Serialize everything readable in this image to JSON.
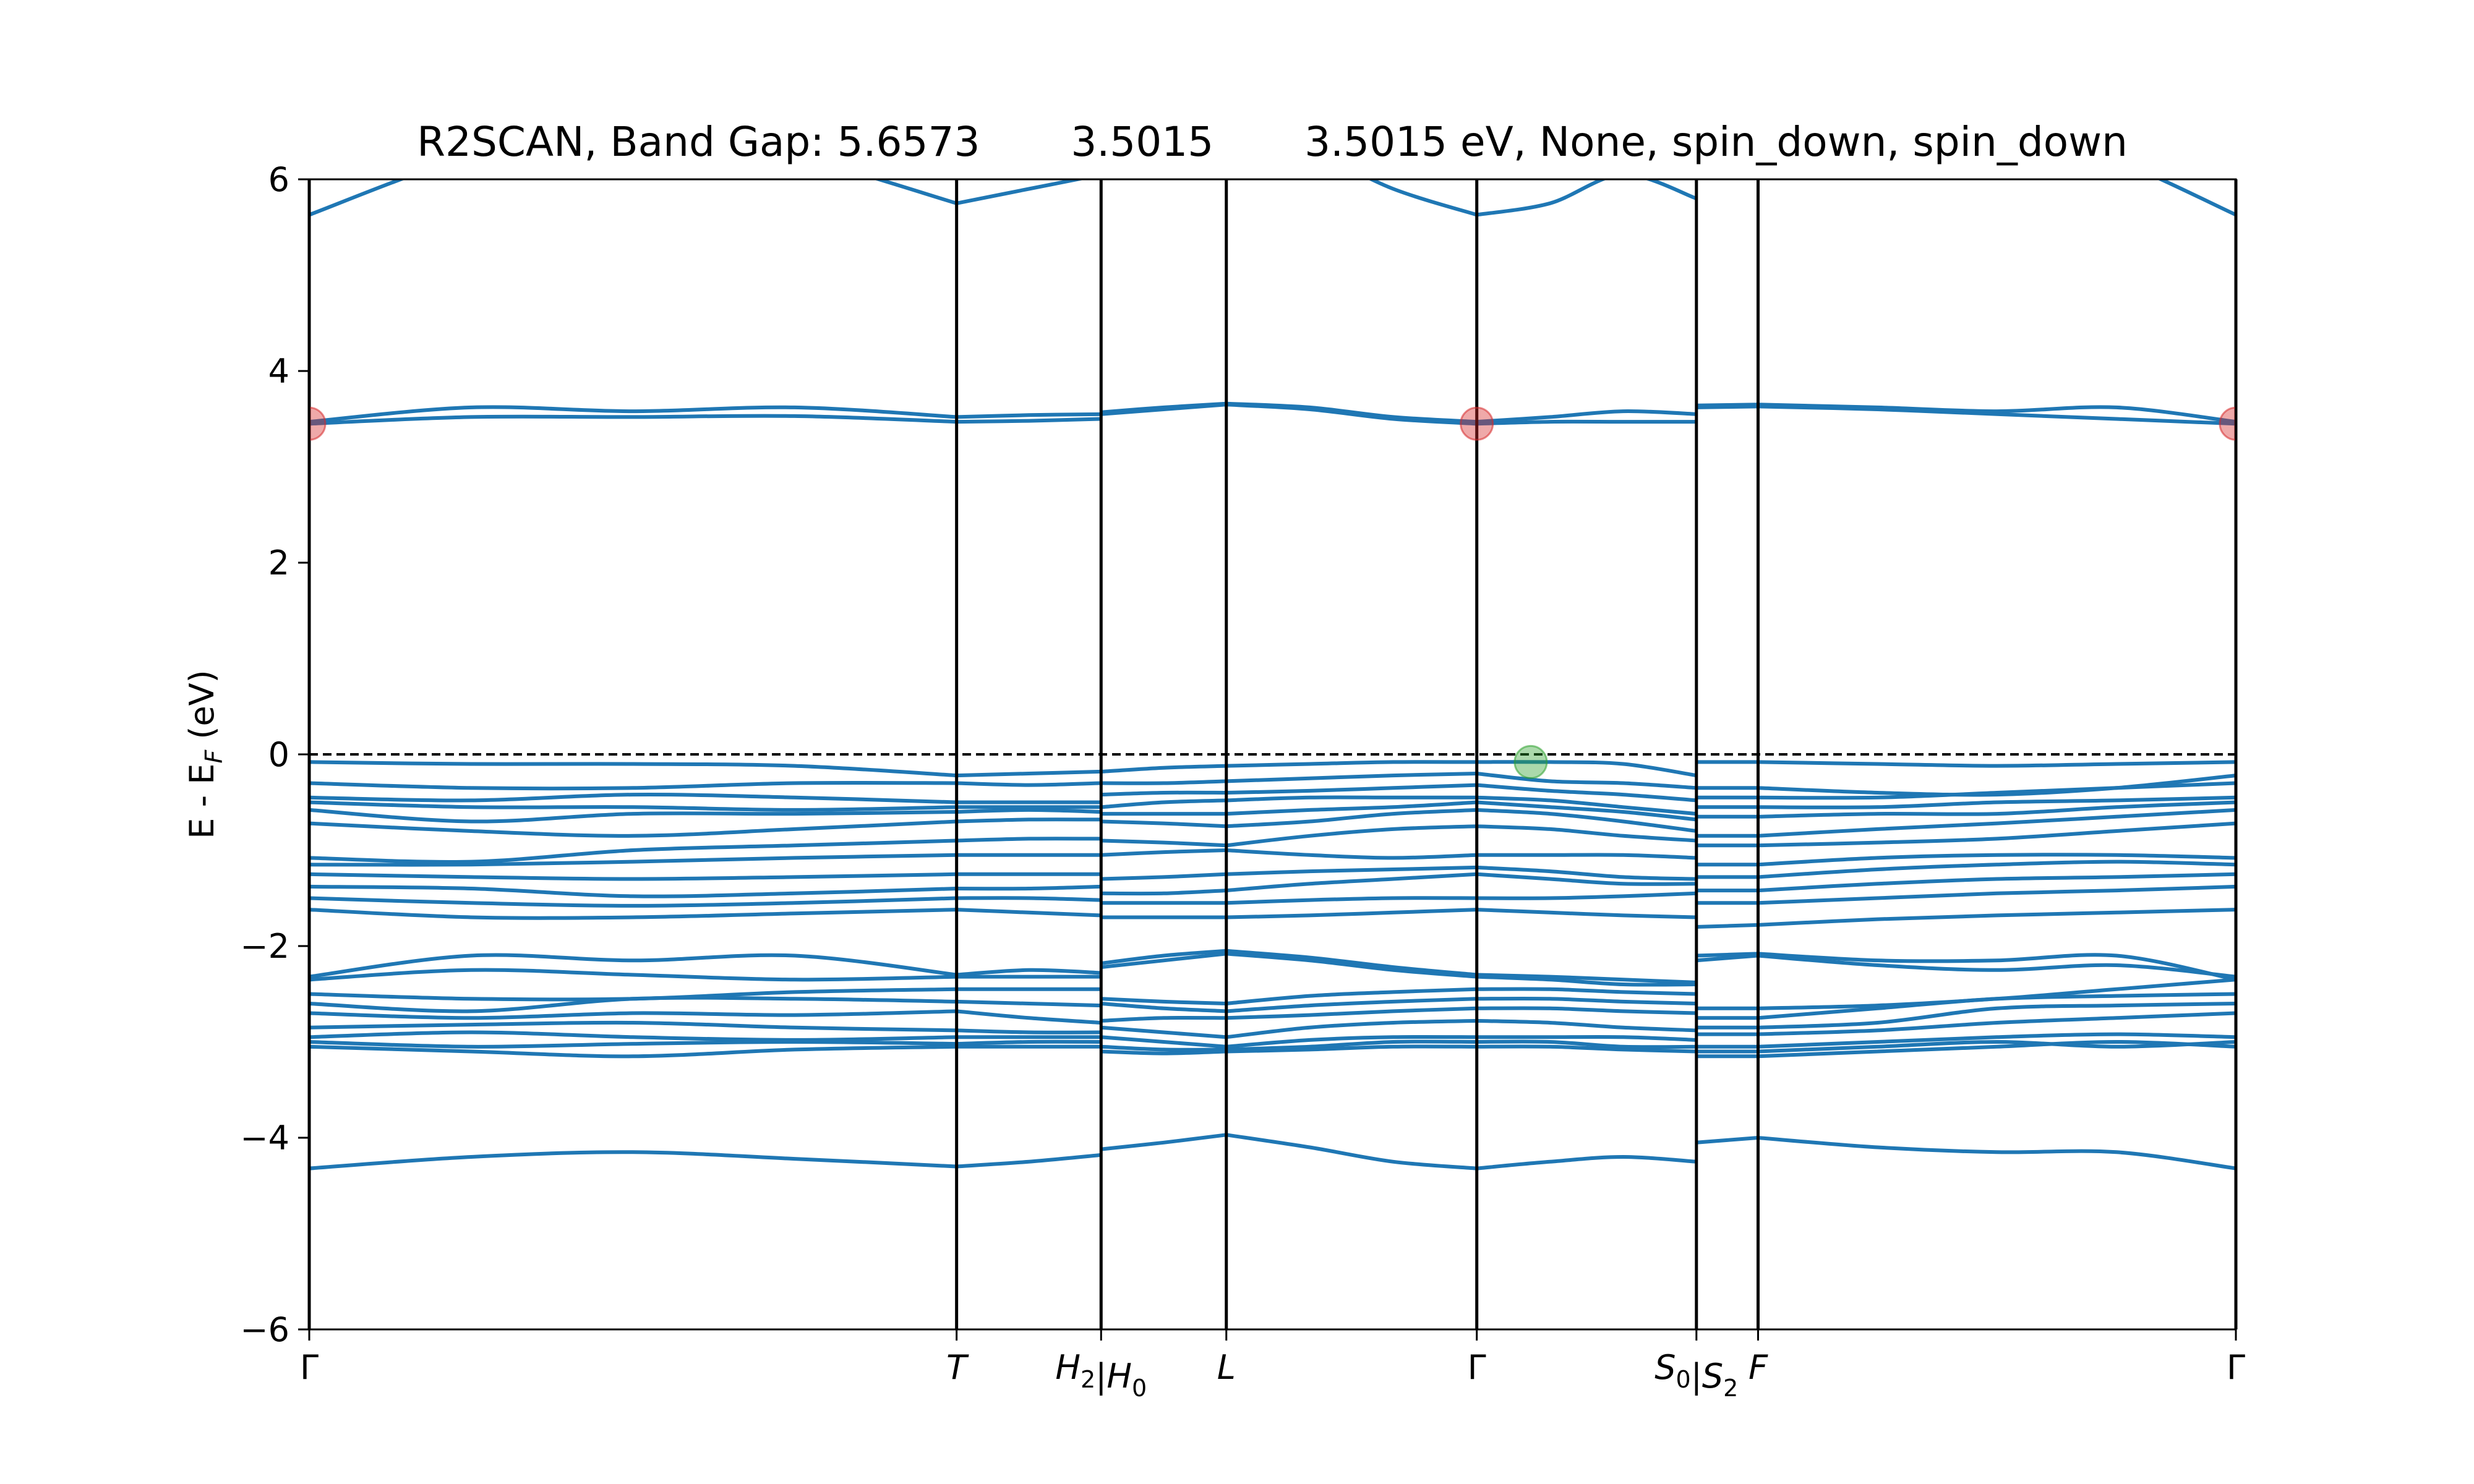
{
  "chart_data": {
    "type": "line",
    "title": "R2SCAN, Band Gap: 5.6573       3.5015       3.5015 eV, None, spin_down, spin_down",
    "ylabel": {
      "prefix": "E - E",
      "sub": "F",
      "suffix": " (eV)"
    },
    "ylim": [
      -6,
      6
    ],
    "yticks": [
      6,
      4,
      2,
      0,
      -2,
      -4,
      -6
    ],
    "ytick_labels": [
      "6",
      "4",
      "2",
      "0",
      "−2",
      "−4",
      "−6"
    ],
    "fermi_level": 0,
    "colors": {
      "band": "#1f77b4",
      "cbm_marker": "#d62728",
      "vbm_marker": "#2ca02c",
      "axis": "#000000"
    },
    "kpath": [
      {
        "pos": 0.0,
        "label": "Γ",
        "sub": ""
      },
      {
        "pos": 0.336,
        "label": "T",
        "sub": ""
      },
      {
        "pos": 0.411,
        "label": "H",
        "sub": "2",
        "label2": "H",
        "sub2": "0"
      },
      {
        "pos": 0.476,
        "label": "L",
        "sub": ""
      },
      {
        "pos": 0.606,
        "label": "Γ",
        "sub": ""
      },
      {
        "pos": 0.72,
        "label": "S",
        "sub": "0",
        "label2": "S",
        "sub2": "2"
      },
      {
        "pos": 0.752,
        "label": "F",
        "sub": ""
      },
      {
        "pos": 1.0,
        "label": "Γ",
        "sub": ""
      }
    ],
    "segments": [
      {
        "from": 0.0,
        "to": 0.336,
        "bands": [
          [
            -4.32,
            -4.2,
            -4.15,
            -4.22,
            -4.3
          ],
          [
            -3.05,
            -3.1,
            -3.15,
            -3.08,
            -3.05
          ],
          [
            -3.0,
            -3.05,
            -3.02,
            -3.0,
            -3.02
          ],
          [
            -2.95,
            -2.9,
            -2.95,
            -2.98,
            -2.95
          ],
          [
            -2.85,
            -2.82,
            -2.8,
            -2.85,
            -2.88
          ],
          [
            -2.7,
            -2.75,
            -2.7,
            -2.72,
            -2.68
          ],
          [
            -2.6,
            -2.68,
            -2.55,
            -2.55,
            -2.58
          ],
          [
            -2.5,
            -2.55,
            -2.55,
            -2.48,
            -2.45
          ],
          [
            -2.35,
            -2.25,
            -2.3,
            -2.35,
            -2.32
          ],
          [
            -2.32,
            -2.1,
            -2.15,
            -2.1,
            -2.3
          ],
          [
            -1.62,
            -1.7,
            -1.7,
            -1.66,
            -1.62
          ],
          [
            -1.5,
            -1.55,
            -1.58,
            -1.55,
            -1.5
          ],
          [
            -1.38,
            -1.4,
            -1.48,
            -1.45,
            -1.4
          ],
          [
            -1.25,
            -1.28,
            -1.3,
            -1.28,
            -1.25
          ],
          [
            -1.15,
            -1.15,
            -1.12,
            -1.08,
            -1.05
          ],
          [
            -1.08,
            -1.12,
            -1.0,
            -0.95,
            -0.9
          ],
          [
            -0.72,
            -0.8,
            -0.85,
            -0.78,
            -0.7
          ],
          [
            -0.58,
            -0.7,
            -0.62,
            -0.62,
            -0.6
          ],
          [
            -0.5,
            -0.55,
            -0.55,
            -0.58,
            -0.55
          ],
          [
            -0.45,
            -0.48,
            -0.42,
            -0.45,
            -0.5
          ],
          [
            -0.3,
            -0.35,
            -0.35,
            -0.3,
            -0.3
          ],
          [
            -0.08,
            -0.1,
            -0.1,
            -0.12,
            -0.22
          ],
          [
            3.45,
            3.52,
            3.52,
            3.53,
            3.47
          ],
          [
            3.47,
            3.62,
            3.58,
            3.62,
            3.52
          ],
          [
            5.63,
            6.25,
            6.6,
            6.25,
            5.75
          ]
        ]
      },
      {
        "from": 0.336,
        "to": 0.411,
        "bands": [
          [
            -4.3,
            -4.25,
            -4.18
          ],
          [
            -3.05,
            -3.05,
            -3.05
          ],
          [
            -3.02,
            -3.0,
            -3.0
          ],
          [
            -2.95,
            -2.95,
            -2.95
          ],
          [
            -2.88,
            -2.9,
            -2.9
          ],
          [
            -2.68,
            -2.75,
            -2.8
          ],
          [
            -2.58,
            -2.6,
            -2.62
          ],
          [
            -2.45,
            -2.45,
            -2.45
          ],
          [
            -2.32,
            -2.32,
            -2.32
          ],
          [
            -2.3,
            -2.25,
            -2.28
          ],
          [
            -1.62,
            -1.65,
            -1.68
          ],
          [
            -1.5,
            -1.5,
            -1.52
          ],
          [
            -1.4,
            -1.4,
            -1.38
          ],
          [
            -1.25,
            -1.25,
            -1.25
          ],
          [
            -1.05,
            -1.05,
            -1.05
          ],
          [
            -0.9,
            -0.88,
            -0.88
          ],
          [
            -0.7,
            -0.68,
            -0.68
          ],
          [
            -0.6,
            -0.58,
            -0.6
          ],
          [
            -0.55,
            -0.55,
            -0.55
          ],
          [
            -0.5,
            -0.5,
            -0.5
          ],
          [
            -0.3,
            -0.32,
            -0.3
          ],
          [
            -0.22,
            -0.2,
            -0.18
          ],
          [
            3.47,
            3.48,
            3.5
          ],
          [
            3.52,
            3.54,
            3.55
          ],
          [
            5.75,
            5.9,
            6.05
          ]
        ]
      },
      {
        "from": 0.411,
        "to": 0.476,
        "bands": [
          [
            -4.12,
            -4.05,
            -3.97
          ],
          [
            -3.1,
            -3.12,
            -3.1
          ],
          [
            -3.05,
            -3.08,
            -3.08
          ],
          [
            -2.95,
            -3.0,
            -3.05
          ],
          [
            -2.85,
            -2.9,
            -2.95
          ],
          [
            -2.78,
            -2.75,
            -2.75
          ],
          [
            -2.6,
            -2.65,
            -2.68
          ],
          [
            -2.55,
            -2.58,
            -2.6
          ],
          [
            -2.22,
            -2.15,
            -2.08
          ],
          [
            -2.18,
            -2.1,
            -2.05
          ],
          [
            -1.7,
            -1.7,
            -1.7
          ],
          [
            -1.55,
            -1.55,
            -1.55
          ],
          [
            -1.45,
            -1.45,
            -1.42
          ],
          [
            -1.3,
            -1.28,
            -1.25
          ],
          [
            -1.05,
            -1.02,
            -1.0
          ],
          [
            -0.9,
            -0.92,
            -0.95
          ],
          [
            -0.7,
            -0.72,
            -0.75
          ],
          [
            -0.62,
            -0.62,
            -0.62
          ],
          [
            -0.55,
            -0.5,
            -0.48
          ],
          [
            -0.42,
            -0.4,
            -0.4
          ],
          [
            -0.3,
            -0.3,
            -0.28
          ],
          [
            -0.18,
            -0.14,
            -0.12
          ],
          [
            3.55,
            3.6,
            3.65
          ],
          [
            3.57,
            3.62,
            3.66
          ],
          [
            6.1,
            6.3,
            6.5
          ]
        ]
      },
      {
        "from": 0.476,
        "to": 0.606,
        "bands": [
          [
            -3.97,
            -4.1,
            -4.25,
            -4.32
          ],
          [
            -3.1,
            -3.08,
            -3.05,
            -3.05
          ],
          [
            -3.08,
            -3.05,
            -3.0,
            -3.0
          ],
          [
            -3.05,
            -2.98,
            -2.95,
            -2.95
          ],
          [
            -2.95,
            -2.85,
            -2.8,
            -2.78
          ],
          [
            -2.75,
            -2.72,
            -2.68,
            -2.65
          ],
          [
            -2.68,
            -2.62,
            -2.58,
            -2.55
          ],
          [
            -2.6,
            -2.52,
            -2.48,
            -2.45
          ],
          [
            -2.08,
            -2.15,
            -2.25,
            -2.32
          ],
          [
            -2.05,
            -2.12,
            -2.22,
            -2.3
          ],
          [
            -1.7,
            -1.68,
            -1.65,
            -1.62
          ],
          [
            -1.55,
            -1.52,
            -1.5,
            -1.5
          ],
          [
            -1.42,
            -1.35,
            -1.3,
            -1.25
          ],
          [
            -1.25,
            -1.22,
            -1.2,
            -1.18
          ],
          [
            -1.0,
            -1.05,
            -1.08,
            -1.05
          ],
          [
            -0.95,
            -0.85,
            -0.78,
            -0.75
          ],
          [
            -0.75,
            -0.7,
            -0.62,
            -0.58
          ],
          [
            -0.62,
            -0.58,
            -0.55,
            -0.5
          ],
          [
            -0.48,
            -0.45,
            -0.45,
            -0.45
          ],
          [
            -0.4,
            -0.38,
            -0.35,
            -0.32
          ],
          [
            -0.28,
            -0.25,
            -0.22,
            -0.2
          ],
          [
            -0.12,
            -0.1,
            -0.08,
            -0.08
          ],
          [
            3.65,
            3.6,
            3.5,
            3.45
          ],
          [
            3.66,
            3.62,
            3.52,
            3.47
          ],
          [
            6.5,
            6.3,
            5.9,
            5.63
          ]
        ]
      },
      {
        "from": 0.606,
        "to": 0.72,
        "bands": [
          [
            -4.32,
            -4.25,
            -4.2,
            -4.25
          ],
          [
            -3.05,
            -3.05,
            -3.08,
            -3.1
          ],
          [
            -3.0,
            -3.0,
            -3.05,
            -3.05
          ],
          [
            -2.95,
            -2.95,
            -2.95,
            -2.98
          ],
          [
            -2.78,
            -2.8,
            -2.85,
            -2.88
          ],
          [
            -2.65,
            -2.65,
            -2.68,
            -2.7
          ],
          [
            -2.55,
            -2.55,
            -2.58,
            -2.6
          ],
          [
            -2.45,
            -2.45,
            -2.48,
            -2.5
          ],
          [
            -2.32,
            -2.35,
            -2.4,
            -2.4
          ],
          [
            -2.3,
            -2.32,
            -2.35,
            -2.38
          ],
          [
            -1.62,
            -1.65,
            -1.68,
            -1.7
          ],
          [
            -1.5,
            -1.5,
            -1.48,
            -1.45
          ],
          [
            -1.25,
            -1.3,
            -1.35,
            -1.35
          ],
          [
            -1.18,
            -1.22,
            -1.28,
            -1.3
          ],
          [
            -1.05,
            -1.05,
            -1.05,
            -1.08
          ],
          [
            -0.75,
            -0.78,
            -0.85,
            -0.9
          ],
          [
            -0.58,
            -0.62,
            -0.7,
            -0.8
          ],
          [
            -0.5,
            -0.55,
            -0.6,
            -0.68
          ],
          [
            -0.45,
            -0.48,
            -0.55,
            -0.62
          ],
          [
            -0.32,
            -0.38,
            -0.42,
            -0.48
          ],
          [
            -0.2,
            -0.28,
            -0.3,
            -0.35
          ],
          [
            -0.08,
            -0.08,
            -0.1,
            -0.22
          ],
          [
            3.45,
            3.47,
            3.47,
            3.47
          ],
          [
            3.47,
            3.52,
            3.58,
            3.55
          ],
          [
            5.63,
            5.75,
            6.05,
            5.8
          ]
        ]
      },
      {
        "from": 0.72,
        "to": 0.752,
        "bands": [
          [
            -4.05,
            -4.0
          ],
          [
            -3.15,
            -3.15
          ],
          [
            -3.1,
            -3.1
          ],
          [
            -3.05,
            -3.05
          ],
          [
            -2.92,
            -2.92
          ],
          [
            -2.85,
            -2.85
          ],
          [
            -2.75,
            -2.75
          ],
          [
            -2.65,
            -2.65
          ],
          [
            -2.15,
            -2.1
          ],
          [
            -2.1,
            -2.08
          ],
          [
            -1.8,
            -1.78
          ],
          [
            -1.55,
            -1.55
          ],
          [
            -1.42,
            -1.42
          ],
          [
            -1.28,
            -1.28
          ],
          [
            -1.15,
            -1.15
          ],
          [
            -0.95,
            -0.95
          ],
          [
            -0.85,
            -0.85
          ],
          [
            -0.65,
            -0.65
          ],
          [
            -0.55,
            -0.55
          ],
          [
            -0.45,
            -0.45
          ],
          [
            -0.35,
            -0.35
          ],
          [
            -0.08,
            -0.08
          ],
          [
            3.62,
            3.63
          ],
          [
            3.64,
            3.65
          ],
          [
            6.3,
            6.4
          ]
        ]
      },
      {
        "from": 0.752,
        "to": 1.0,
        "bands": [
          [
            -4.0,
            -4.1,
            -4.15,
            -4.15,
            -4.32
          ],
          [
            -3.15,
            -3.1,
            -3.05,
            -3.0,
            -3.05
          ],
          [
            -3.1,
            -3.05,
            -3.0,
            -3.05,
            -3.0
          ],
          [
            -3.05,
            -3.0,
            -2.95,
            -2.92,
            -2.95
          ],
          [
            -2.92,
            -2.88,
            -2.8,
            -2.75,
            -2.7
          ],
          [
            -2.85,
            -2.8,
            -2.65,
            -2.62,
            -2.6
          ],
          [
            -2.75,
            -2.65,
            -2.55,
            -2.52,
            -2.5
          ],
          [
            -2.65,
            -2.62,
            -2.55,
            -2.45,
            -2.35
          ],
          [
            -2.1,
            -2.2,
            -2.25,
            -2.2,
            -2.32
          ],
          [
            -2.08,
            -2.15,
            -2.15,
            -2.1,
            -2.35
          ],
          [
            -1.78,
            -1.72,
            -1.68,
            -1.65,
            -1.62
          ],
          [
            -1.55,
            -1.5,
            -1.45,
            -1.42,
            -1.38
          ],
          [
            -1.42,
            -1.35,
            -1.3,
            -1.28,
            -1.25
          ],
          [
            -1.28,
            -1.2,
            -1.15,
            -1.12,
            -1.15
          ],
          [
            -1.15,
            -1.08,
            -1.05,
            -1.05,
            -1.08
          ],
          [
            -0.95,
            -0.92,
            -0.88,
            -0.8,
            -0.72
          ],
          [
            -0.85,
            -0.78,
            -0.72,
            -0.65,
            -0.58
          ],
          [
            -0.65,
            -0.62,
            -0.62,
            -0.55,
            -0.5
          ],
          [
            -0.55,
            -0.55,
            -0.5,
            -0.48,
            -0.45
          ],
          [
            -0.45,
            -0.45,
            -0.4,
            -0.35,
            -0.3
          ],
          [
            -0.35,
            -0.4,
            -0.42,
            -0.35,
            -0.22
          ],
          [
            -0.08,
            -0.1,
            -0.12,
            -0.1,
            -0.08
          ],
          [
            3.63,
            3.6,
            3.55,
            3.5,
            3.45
          ],
          [
            3.65,
            3.62,
            3.58,
            3.62,
            3.47
          ],
          [
            6.4,
            6.8,
            6.6,
            6.2,
            5.63
          ]
        ]
      }
    ],
    "markers": [
      {
        "pos": 0.0,
        "energy": 3.45,
        "color": "#d62728",
        "kind": "cbm"
      },
      {
        "pos": 0.606,
        "energy": 3.45,
        "color": "#d62728",
        "kind": "cbm"
      },
      {
        "pos": 1.0,
        "energy": 3.45,
        "color": "#d62728",
        "kind": "cbm"
      },
      {
        "pos": 0.634,
        "energy": -0.08,
        "color": "#2ca02c",
        "kind": "vbm"
      }
    ]
  }
}
